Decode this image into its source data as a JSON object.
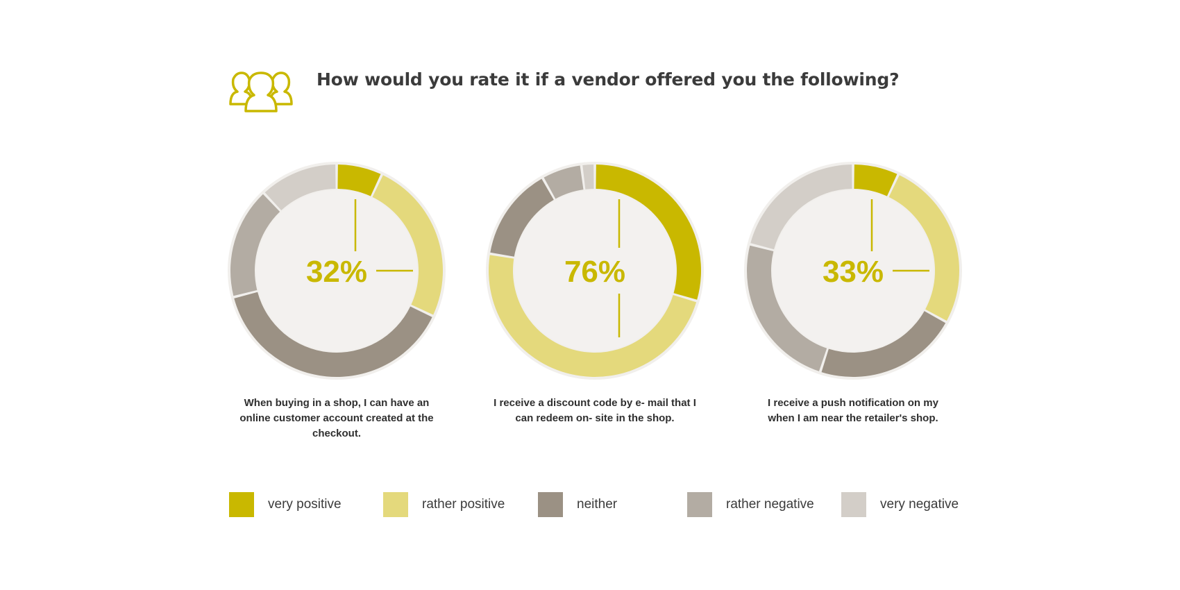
{
  "header": {
    "title": "How would you rate it if a vendor offered you the following?",
    "icon": "users-group-icon",
    "icon_color": "#c9b800"
  },
  "legend": [
    {
      "label": "very positive",
      "color": "#c9b800"
    },
    {
      "label": "rather positive",
      "color": "#e4d97c"
    },
    {
      "label": "neither",
      "color": "#9b9184"
    },
    {
      "label": "rather negative",
      "color": "#b3aca3"
    },
    {
      "label": "very negative",
      "color": "#d3cec8"
    }
  ],
  "chart_data": [
    {
      "type": "pie",
      "variant": "donut",
      "center_label": "32%",
      "caption_lines": [
        "When buying in a shop, I can have an",
        "online customer account created at the",
        "checkout."
      ],
      "categories": [
        "very positive",
        "rather positive",
        "neither",
        "rather negative",
        "very negative"
      ],
      "values": [
        7,
        25,
        39,
        17,
        12
      ]
    },
    {
      "type": "pie",
      "variant": "donut",
      "center_label": "76%",
      "caption_lines": [
        "I receive a discount code by e- mail that I",
        "can redeem on- site in the shop."
      ],
      "categories": [
        "very positive",
        "rather positive",
        "neither",
        "rather negative",
        "very negative"
      ],
      "values": [
        29,
        47,
        14,
        6,
        2
      ]
    },
    {
      "type": "pie",
      "variant": "donut",
      "center_label": "33%",
      "caption_lines": [
        "I receive a push notification on my",
        "when I am near the retailer's shop."
      ],
      "categories": [
        "very positive",
        "rather positive",
        "neither",
        "rather negative",
        "very negative"
      ],
      "values": [
        7,
        26,
        22,
        24,
        21
      ]
    }
  ]
}
